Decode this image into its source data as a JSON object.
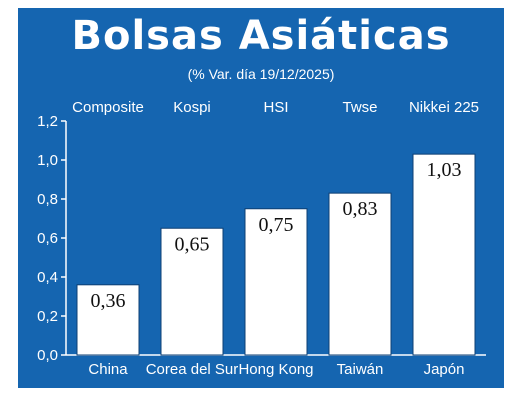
{
  "header": {
    "title": "Bolsas Asiáticas",
    "subtitle": "(% Var. día  19/12/2025)"
  },
  "colors": {
    "panel": "#1565b0",
    "bar": "#ffffff",
    "text": "#ffffff",
    "value_text": "#111111"
  },
  "chart_data": {
    "type": "bar",
    "title": "Bolsas Asiáticas",
    "subtitle": "(% Var. día  19/12/2025)",
    "categories": [
      "China",
      "Corea del Sur",
      "Hong Kong",
      "Taiwán",
      "Japón"
    ],
    "index_names": [
      "Composite",
      "Kospi",
      "HSI",
      "Twse",
      "Nikkei 225"
    ],
    "values": [
      0.36,
      0.65,
      0.75,
      0.83,
      1.03
    ],
    "value_labels": [
      "0,36",
      "0,65",
      "0,75",
      "0,83",
      "1,03"
    ],
    "ylim": [
      0,
      1.2
    ],
    "yticks": [
      0,
      0.2,
      0.4,
      0.6,
      0.8,
      1.0,
      1.2
    ],
    "ytick_labels": [
      "0,0",
      "0,2",
      "0,4",
      "0,6",
      "0,8",
      "1,0",
      "1,2"
    ],
    "grid": false,
    "legend": "none"
  }
}
